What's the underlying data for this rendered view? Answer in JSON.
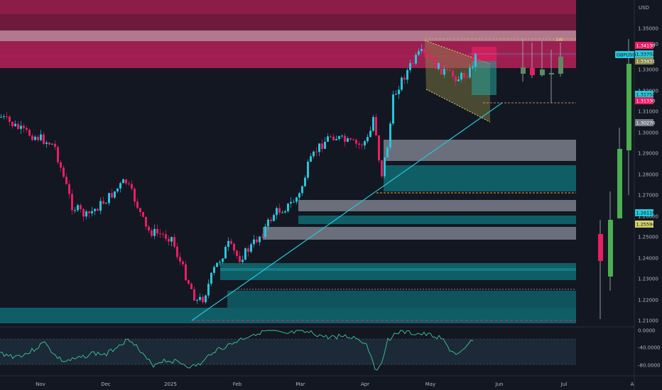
{
  "currency": "USD",
  "symbol": "GBPUSD",
  "last_price": "1.33702",
  "timeframe_marker": "1W",
  "colors": {
    "background": "#131722",
    "bull": "#26c6da",
    "bear": "#e91e63",
    "price_tag": "#26c6da",
    "supply_zone": "#c2185b",
    "demand_zone": "#00838f",
    "grey_zone": "#9e9e9e",
    "trendline": "#26c6da",
    "rsi_line": "#3ec7a3",
    "weekly_bull": "#4caf50",
    "weekly_bear": "#e91e63"
  },
  "price_axis": {
    "labels": [
      "1.35000",
      "1.34000",
      "1.33000",
      "1.32000",
      "1.31000",
      "1.30000",
      "1.29000",
      "1.28000",
      "1.27000",
      "1.26000",
      "1.25000",
      "1.24000",
      "1.23000",
      "1.22000",
      "1.21000"
    ],
    "tags": [
      {
        "text": "1.34130",
        "style": "bear"
      },
      {
        "text": "1.33702",
        "style": "cyan",
        "name": "GBPUSD"
      },
      {
        "text": "1.33431",
        "style": "olive"
      },
      {
        "text": "1.31752",
        "style": "cyan"
      },
      {
        "text": "1.31330",
        "style": "bear"
      },
      {
        "text": "1.30276",
        "style": "grey"
      },
      {
        "text": "1.26119",
        "style": "cyan"
      },
      {
        "text": "1.25594",
        "style": "yellow"
      }
    ]
  },
  "rsi_axis": {
    "labels": [
      "0.0000",
      "-40.0000",
      "-80.0000"
    ]
  },
  "time_axis": {
    "labels": [
      "Nov",
      "Dec",
      "2025",
      "Feb",
      "Mar",
      "Apr",
      "May",
      "Jun",
      "Jul",
      "A"
    ]
  }
}
